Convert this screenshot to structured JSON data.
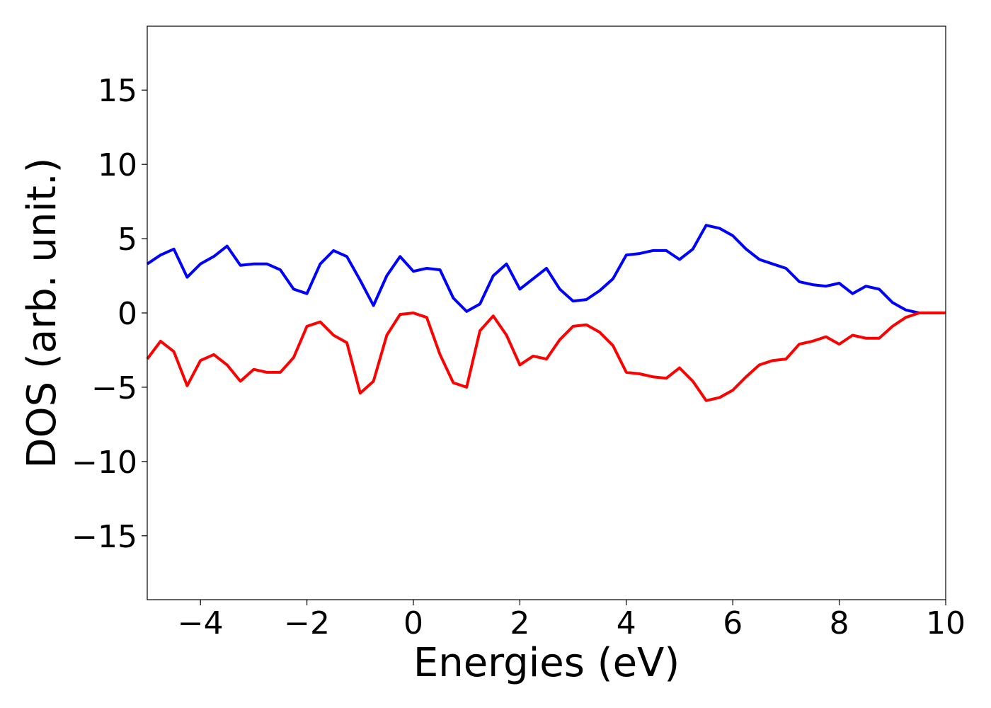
{
  "chart_data": {
    "type": "line",
    "x_label": "Energies (eV)",
    "y_label": "DOS (arb. unit.)",
    "x": [
      -5,
      -4.75,
      -4.5,
      -4.25,
      -4,
      -3.75,
      -3.5,
      -3.25,
      -3,
      -2.75,
      -2.5,
      -2.25,
      -2,
      -1.75,
      -1.5,
      -1.25,
      -1,
      -0.75,
      -0.5,
      -0.25,
      0,
      0.25,
      0.5,
      0.75,
      1,
      1.25,
      1.5,
      1.75,
      2,
      2.25,
      2.5,
      2.75,
      3,
      3.25,
      3.5,
      3.75,
      4,
      4.25,
      4.5,
      4.75,
      5,
      5.25,
      5.5,
      5.75,
      6,
      6.25,
      6.5,
      6.75,
      7,
      7.25,
      7.5,
      7.75,
      8,
      8.25,
      8.5,
      8.75,
      9,
      9.25,
      9.5,
      9.75,
      10
    ],
    "series": [
      {
        "color": "#0000ff",
        "values": [
          3.3,
          3.9,
          4.3,
          2.4,
          3.3,
          3.8,
          4.5,
          3.2,
          3.3,
          3.3,
          2.9,
          1.6,
          1.3,
          3.3,
          4.2,
          3.8,
          2.2,
          0.5,
          2.5,
          3.8,
          2.8,
          3.0,
          2.9,
          1.0,
          0.1,
          0.6,
          2.5,
          3.3,
          1.6,
          2.3,
          3.0,
          1.6,
          0.8,
          0.9,
          1.5,
          2.3,
          3.9,
          4.0,
          4.2,
          4.2,
          3.6,
          4.3,
          5.9,
          5.7,
          5.2,
          4.3,
          3.6,
          3.3,
          3.0,
          2.1,
          1.9,
          1.8,
          2.0,
          1.3,
          1.8,
          1.6,
          0.7,
          0.2,
          0,
          0,
          0
        ]
      },
      {
        "color": "#ff0000",
        "values": [
          -3.1,
          -1.9,
          -2.6,
          -4.9,
          -3.2,
          -2.8,
          -3.5,
          -4.6,
          -3.8,
          -4.0,
          -4.0,
          -3.0,
          -0.9,
          -0.6,
          -1.5,
          -2.0,
          -5.4,
          -4.6,
          -1.5,
          -0.1,
          0,
          -0.3,
          -2.8,
          -4.7,
          -5.0,
          -1.2,
          -0.2,
          -1.5,
          -3.5,
          -2.9,
          -3.1,
          -1.8,
          -0.9,
          -0.8,
          -1.3,
          -2.2,
          -4.0,
          -4.1,
          -4.3,
          -4.4,
          -3.7,
          -4.6,
          -5.9,
          -5.7,
          -5.2,
          -4.3,
          -3.5,
          -3.2,
          -3.1,
          -2.1,
          -1.9,
          -1.6,
          -2.1,
          -1.5,
          -1.7,
          -1.7,
          -0.9,
          -0.3,
          0,
          0,
          0
        ]
      }
    ],
    "xlim": [
      -5,
      10
    ],
    "ylim": [
      -19.3,
      19.3
    ],
    "xticks": [
      {
        "value": -4,
        "label": "−4"
      },
      {
        "value": -2,
        "label": "−2"
      },
      0,
      2,
      4,
      6,
      8,
      10
    ],
    "yticks": [
      {
        "value": -15,
        "label": "−15"
      },
      {
        "value": -10,
        "label": "−10"
      },
      {
        "value": -5,
        "label": "−5"
      },
      0,
      5,
      10,
      15
    ]
  }
}
